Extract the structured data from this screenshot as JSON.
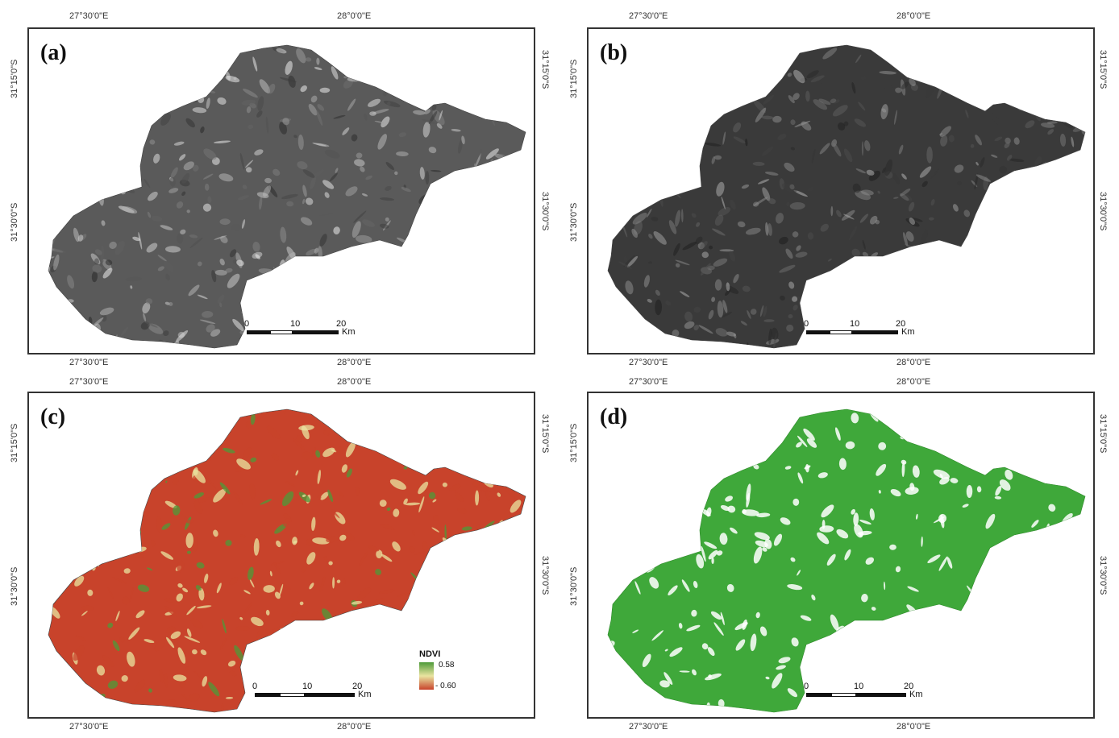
{
  "panels": [
    {
      "label": "(a)",
      "top_ticks": [
        "27°30'0\"E",
        "28°0'0\"E"
      ],
      "bottom_ticks": [
        "27°30'0\"E",
        "28°0'0\"E"
      ],
      "left_ticks": [
        "31°15'0\"S",
        "31°30'0\"S"
      ],
      "right_ticks": [
        "31°15'0\"S",
        "31°30'0\"S"
      ],
      "scale": {
        "labels": [
          "0",
          "10",
          "20"
        ],
        "unit": "Km"
      },
      "style": "grayscale-light"
    },
    {
      "label": "(b)",
      "top_ticks": [
        "27°30'0\"E",
        "28°0'0\"E"
      ],
      "bottom_ticks": [
        "27°30'0\"E",
        "28°0'0\"E"
      ],
      "left_ticks": [
        "31°15'0\"S",
        "31°30'0\"S"
      ],
      "right_ticks": [
        "31°15'0\"S",
        "31°30'0\"S"
      ],
      "scale": {
        "labels": [
          "0",
          "10",
          "20"
        ],
        "unit": "Km"
      },
      "style": "grayscale-dark"
    },
    {
      "label": "(c)",
      "top_ticks": [
        "27°30'0\"E",
        "28°0'0\"E"
      ],
      "bottom_ticks": [
        "27°30'0\"E",
        "28°0'0\"E"
      ],
      "left_ticks": [
        "31°15'0\"S",
        "31°30'0\"S"
      ],
      "right_ticks": [
        "31°15'0\"S",
        "31°30'0\"S"
      ],
      "scale": {
        "labels": [
          "0",
          "10",
          "20"
        ],
        "unit": "Km"
      },
      "style": "ndvi",
      "legend": {
        "title": "NDVI",
        "max": "0.58",
        "min": "- 0.60"
      }
    },
    {
      "label": "(d)",
      "top_ticks": [
        "27°30'0\"E",
        "28°0'0\"E"
      ],
      "bottom_ticks": [
        "27°30'0\"E",
        "28°0'0\"E"
      ],
      "left_ticks": [
        "31°15'0\"S",
        "31°30'0\"S"
      ],
      "right_ticks": [
        "31°15'0\"S",
        "31°30'0\"S"
      ],
      "scale": {
        "labels": [
          "0",
          "10",
          "20"
        ],
        "unit": "Km"
      },
      "style": "green"
    }
  ],
  "colors": {
    "gray_light": "#5a5a5a",
    "gray_dark": "#3a3a3a",
    "ndvi_high": "#4e9a3a",
    "ndvi_mid": "#e9e4a0",
    "ndvi_low": "#c8432b",
    "green_fill": "#3fa83a"
  }
}
